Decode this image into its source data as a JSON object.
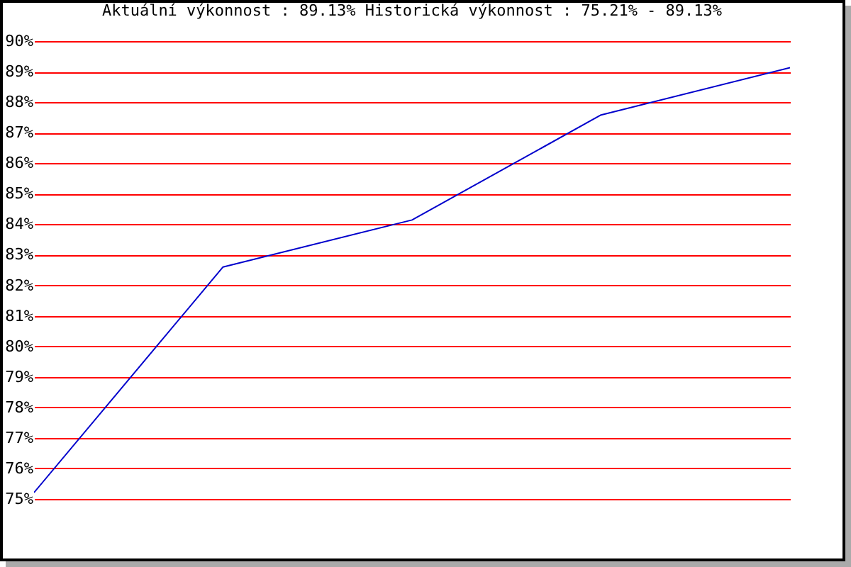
{
  "chart_data": {
    "type": "line",
    "title": "Aktuální výkonnost : 89.13%  Historická výkonnost : 75.21% - 89.13%",
    "categories": [
      null,
      null,
      null,
      null,
      null
    ],
    "series": [
      {
        "color": "#0000cc",
        "values": [
          75.21,
          82.6,
          84.14,
          87.58,
          89.13
        ]
      }
    ],
    "ylim": [
      75,
      90
    ],
    "yticks": [
      {
        "value": 75,
        "label": "75%"
      },
      {
        "value": 76,
        "label": "76%"
      },
      {
        "value": 77,
        "label": "77%"
      },
      {
        "value": 78,
        "label": "78%"
      },
      {
        "value": 79,
        "label": "79%"
      },
      {
        "value": 80,
        "label": "80%"
      },
      {
        "value": 81,
        "label": "81%"
      },
      {
        "value": 82,
        "label": "82%"
      },
      {
        "value": 83,
        "label": "83%"
      },
      {
        "value": 84,
        "label": "84%"
      },
      {
        "value": 85,
        "label": "85%"
      },
      {
        "value": 86,
        "label": "86%"
      },
      {
        "value": 87,
        "label": "87%"
      },
      {
        "value": 88,
        "label": "88%"
      },
      {
        "value": 89,
        "label": "89%"
      },
      {
        "value": 90,
        "label": "90%"
      }
    ],
    "grid": "y",
    "tick_labels": "y",
    "marker": "none"
  }
}
